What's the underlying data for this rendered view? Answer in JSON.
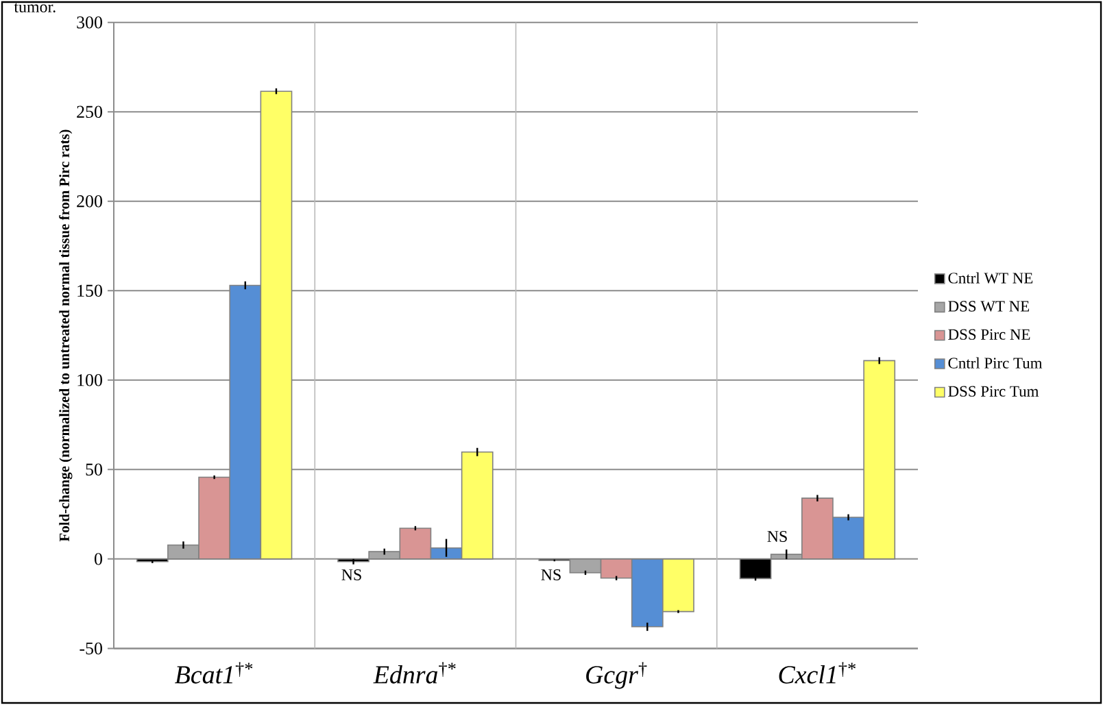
{
  "chart_data": {
    "type": "bar",
    "ylabel": "Fold-change (normalized to untreated normal tissue from Pirc rats)",
    "categories": [
      "*Bcat1*$^{†*}$",
      "*Ednra*$^{†*}$",
      "*Gcgr*$^{†}$",
      "*Cxcl1*$^{†*}$"
    ],
    "series": [
      {
        "name": "Cntrl WT NE",
        "color": "#000000",
        "values": [
          -1.5,
          -1.5,
          -0.8,
          -10.9
        ],
        "errors": [
          0.8,
          1.5,
          0.5,
          1.2
        ]
      },
      {
        "name": "DSS WT NE",
        "color": "#a6a6a6",
        "values": [
          7.8,
          4.1,
          -7.7,
          2.6
        ],
        "errors": [
          2.0,
          1.7,
          1.2,
          2.7
        ]
      },
      {
        "name": "DSS Pirc NE",
        "color": "#d99594",
        "values": [
          45.7,
          17.2,
          -10.7,
          34.0
        ],
        "errors": [
          1.0,
          1.2,
          1.2,
          1.8
        ]
      },
      {
        "name": "Cntrl Pirc Tum",
        "color": "#558ed5",
        "values": [
          153.0,
          6.2,
          -37.9,
          23.3
        ],
        "errors": [
          2.2,
          5.0,
          2.3,
          1.7
        ]
      },
      {
        "name": "DSS Pirc Tum",
        "color": "#ffff66",
        "values": [
          261.5,
          59.8,
          -29.4,
          110.9
        ],
        "errors": [
          1.6,
          2.3,
          0.8,
          1.9
        ]
      }
    ],
    "ylim": [
      -50,
      300
    ],
    "yticks": [
      -50,
      0,
      50,
      100,
      150,
      200,
      250,
      300
    ],
    "grid": true,
    "legend": "right",
    "annotations": [
      "tumor.",
      "NS",
      "NS",
      "NS"
    ]
  }
}
